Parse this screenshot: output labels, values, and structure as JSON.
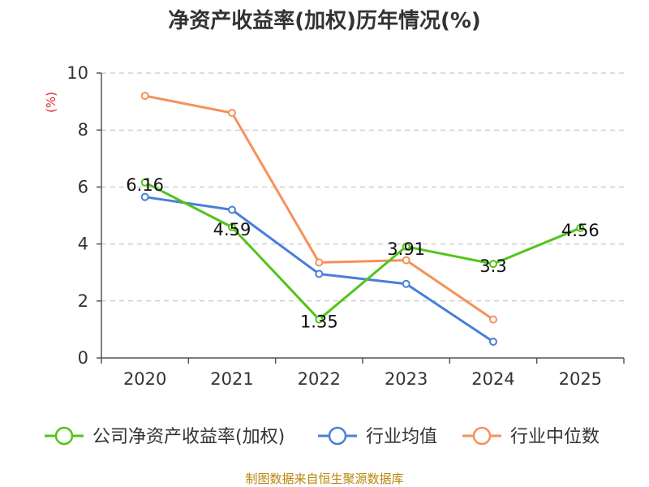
{
  "chart_data": {
    "type": "line",
    "title": "净资产收益率(加权)历年情况(%)",
    "ylabel": "(%)",
    "xlabel": "",
    "categories": [
      "2020",
      "2021",
      "2022",
      "2023",
      "2024",
      "2025"
    ],
    "ylim": [
      0,
      10
    ],
    "yticks": [
      0,
      2,
      4,
      6,
      8,
      10
    ],
    "grid": true,
    "legend_position": "bottom",
    "series": [
      {
        "name": "公司净资产收益率(加权)",
        "color": "#52c41a",
        "values": [
          6.16,
          4.59,
          1.35,
          3.91,
          3.3,
          4.56
        ],
        "labels": [
          "6.16",
          "4.59",
          "1.35",
          "3.91",
          "3.3",
          "4.56"
        ]
      },
      {
        "name": "行业均值",
        "color": "#4a7fd9",
        "values": [
          5.65,
          5.2,
          2.95,
          2.6,
          0.57,
          null
        ]
      },
      {
        "name": "行业中位数",
        "color": "#f5915a",
        "values": [
          9.2,
          8.6,
          3.35,
          3.43,
          1.35,
          null
        ]
      }
    ],
    "source": "制图数据来自恒生聚源数据库"
  }
}
